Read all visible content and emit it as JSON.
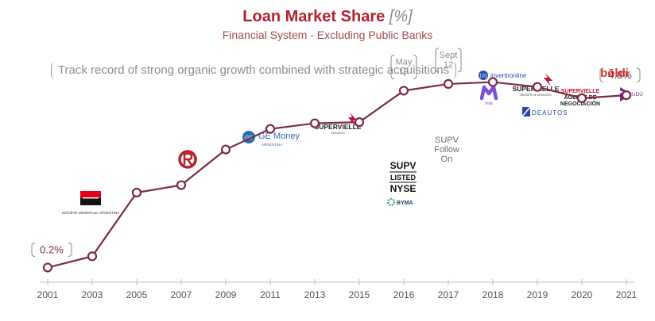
{
  "chart_data": {
    "type": "line",
    "title": "Loan Market Share",
    "title_unit": "[%]",
    "subtitle": "Financial System - Excluding Public Banks",
    "tagline": "Track record of strong organic growth combined with strategic acquisitions",
    "xlabel": "",
    "ylabel": "",
    "ylim": [
      0,
      5.5
    ],
    "grid": false,
    "categories": [
      "2001",
      "2003",
      "2005",
      "2007",
      "2009",
      "2011",
      "2013",
      "2015",
      "2016",
      "2017",
      "2018",
      "2019",
      "2020",
      "2021"
    ],
    "series": [
      {
        "name": "Loan Market Share",
        "values": [
          0.2,
          0.5,
          2.2,
          2.4,
          3.35,
          3.9,
          4.05,
          4.08,
          4.92,
          5.1,
          5.15,
          5.02,
          4.72,
          4.8
        ],
        "color": "#7a2a46"
      }
    ],
    "data_labels": [
      {
        "category": "2001",
        "text": "0.2%"
      },
      {
        "category": "2021",
        "text": "4.8%"
      }
    ],
    "callouts": [
      {
        "category": "2016",
        "lines": [
          "May",
          "19"
        ]
      },
      {
        "category": "2017",
        "lines": [
          "Sept",
          "12"
        ]
      }
    ],
    "annotations": {
      "supv_follow_on": [
        "SUPV",
        "Follow",
        "On"
      ],
      "supv_listed": {
        "line1": "SUPV",
        "line2": "LISTED",
        "line3": "NYSE",
        "exchange": "BYMA"
      }
    },
    "logos": {
      "societe_generale": "SOCIÉTÉ GÉNÉRALE ARGENTINA",
      "ge_money": {
        "brand": "GE Money",
        "country": "ARGENTINA"
      },
      "supervielle_seguros": {
        "brand": "SUPERVIELLE",
        "sub": "SEGUROS"
      },
      "invertir_online": "invertironline",
      "mila": "mila",
      "supervielle_broker": {
        "brand": "SUPERVIELLE",
        "sub": "BROKER DE SEGUROS"
      },
      "deautos": "DEAUTOS",
      "supervielle_agente": {
        "brand": "SUPERVIELLE",
        "line1": "AGENTE DE",
        "line2": "NEGOCIACIÓN"
      },
      "boldi": "bōldi",
      "iudu": "IUDÚ"
    },
    "colors": {
      "line": "#7a2a46",
      "title": "#b5222f",
      "subtitle": "#a44b57",
      "label": "#7a2a46",
      "axis": "#555555",
      "muted": "#8d8d8d",
      "supervielle_red": "#c8102e"
    }
  }
}
